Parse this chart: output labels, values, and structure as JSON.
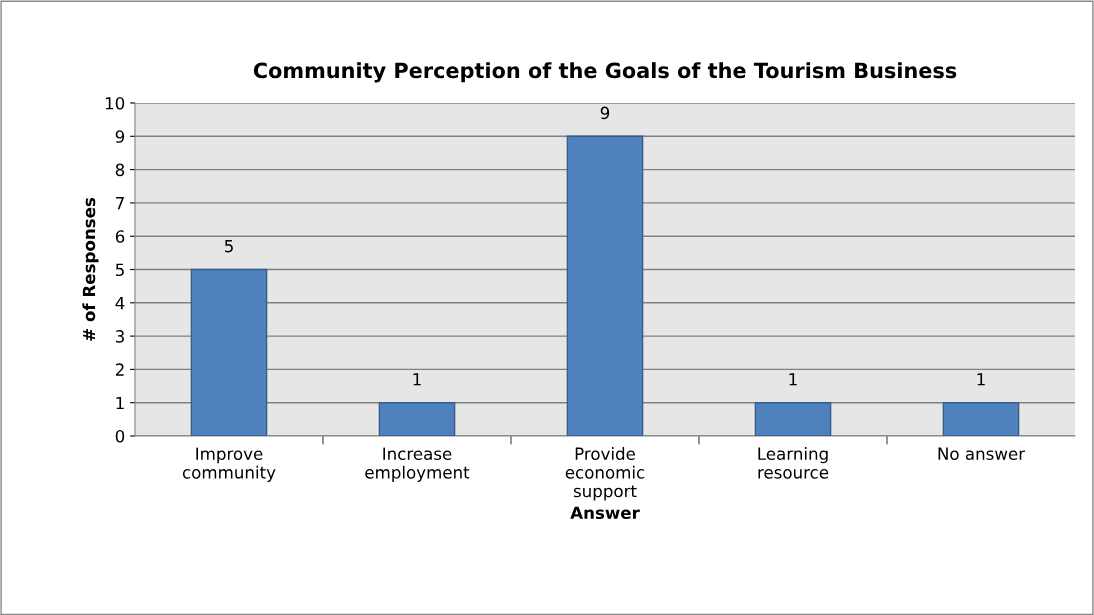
{
  "chart_data": {
    "type": "bar",
    "title": "Community Perception of the Goals of the Tourism Business",
    "xlabel": "Answer",
    "ylabel": "# of Responses",
    "categories": [
      "Improve\ncommunity",
      "Increase\nemployment",
      "Provide\neconomic\nsupport",
      "Learning\nresource",
      "No answer"
    ],
    "values": [
      5,
      1,
      9,
      1,
      1
    ],
    "color": "#4f81bd",
    "ylim": [
      0,
      10
    ],
    "yticks": [
      0,
      1,
      2,
      3,
      4,
      5,
      6,
      7,
      8,
      9,
      10
    ],
    "grid": "y",
    "data_labels": true
  }
}
